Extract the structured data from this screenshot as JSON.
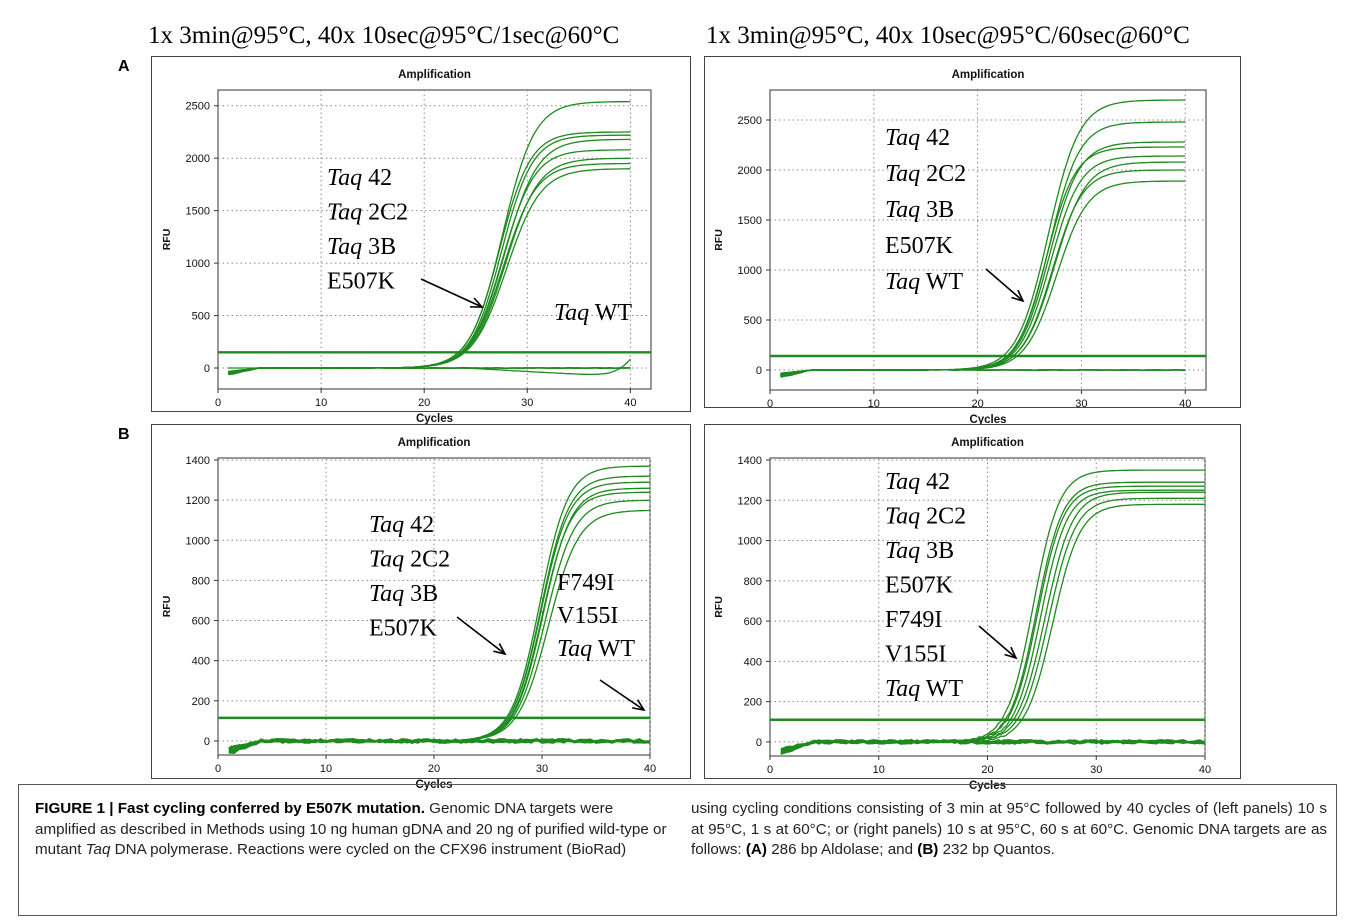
{
  "headers": {
    "left": "1x 3min@95°C, 40x 10sec@95°C/1sec@60°C",
    "right": "1x 3min@95°C, 40x 10sec@95°C/60sec@60°C"
  },
  "panel_labels": [
    "A",
    "B"
  ],
  "chart_data": [
    {
      "type": "line",
      "panel": "A",
      "column": "left",
      "title": "Amplification",
      "xlabel": "Cycles",
      "ylabel": "RFU",
      "xlim": [
        0,
        42
      ],
      "ylim": [
        -200,
        2650
      ],
      "xticks": [
        0,
        10,
        20,
        30,
        40
      ],
      "yticks": [
        0,
        500,
        1000,
        1500,
        2000,
        2500
      ],
      "grid": true,
      "threshold": 150,
      "curves": [
        {
          "plateau": 2540,
          "midpoint": 27.6,
          "slope": 1.55
        },
        {
          "plateau": 2250,
          "midpoint": 27.3,
          "slope": 1.5
        },
        {
          "plateau": 2220,
          "midpoint": 27.5,
          "slope": 1.5
        },
        {
          "plateau": 2180,
          "midpoint": 27.8,
          "slope": 1.6
        },
        {
          "plateau": 2080,
          "midpoint": 27.6,
          "slope": 1.55
        },
        {
          "plateau": 2000,
          "midpoint": 27.9,
          "slope": 1.6
        },
        {
          "plateau": 1950,
          "midpoint": 27.7,
          "slope": 1.6
        },
        {
          "plateau": 1900,
          "midpoint": 28.0,
          "slope": 1.65
        }
      ],
      "wt_curve": {
        "plateau": 800,
        "midpoint": 41.5,
        "slope": 1.1
      },
      "annotations": {
        "group": [
          {
            "italic": "Taq",
            "rest": " 42"
          },
          {
            "italic": "Taq",
            "rest": " 2C2"
          },
          {
            "italic": "Taq",
            "rest": " 3B"
          },
          {
            "italic": "",
            "rest": "E507K"
          }
        ],
        "wt": {
          "italic": "Taq",
          "rest": " WT"
        }
      }
    },
    {
      "type": "line",
      "panel": "A",
      "column": "right",
      "title": "Amplification",
      "xlabel": "Cycles",
      "ylabel": "RFU",
      "xlim": [
        0,
        42
      ],
      "ylim": [
        -200,
        2800
      ],
      "xticks": [
        0,
        10,
        20,
        30,
        40
      ],
      "yticks": [
        0,
        500,
        1000,
        1500,
        2000,
        2500
      ],
      "grid": true,
      "threshold": 140,
      "curves": [
        {
          "plateau": 2700,
          "midpoint": 26.8,
          "slope": 1.5
        },
        {
          "plateau": 2480,
          "midpoint": 26.9,
          "slope": 1.45
        },
        {
          "plateau": 2280,
          "midpoint": 26.9,
          "slope": 1.45
        },
        {
          "plateau": 2230,
          "midpoint": 26.6,
          "slope": 1.4
        },
        {
          "plateau": 2140,
          "midpoint": 27.0,
          "slope": 1.45
        },
        {
          "plateau": 2080,
          "midpoint": 27.4,
          "slope": 1.5
        },
        {
          "plateau": 2000,
          "midpoint": 27.2,
          "slope": 1.45
        },
        {
          "plateau": 1890,
          "midpoint": 27.6,
          "slope": 1.5
        }
      ],
      "annotations": {
        "group": [
          {
            "italic": "Taq",
            "rest": " 42"
          },
          {
            "italic": "Taq",
            "rest": " 2C2"
          },
          {
            "italic": "Taq",
            "rest": " 3B"
          },
          {
            "italic": "",
            "rest": "E507K"
          },
          {
            "italic": "Taq",
            "rest": " WT"
          }
        ]
      }
    },
    {
      "type": "line",
      "panel": "B",
      "column": "left",
      "title": "Amplification",
      "xlabel": "Cycles",
      "ylabel": "RFU",
      "xlim": [
        0,
        40
      ],
      "ylim": [
        -70,
        1410
      ],
      "xticks": [
        0,
        10,
        20,
        30,
        40
      ],
      "yticks": [
        0,
        200,
        400,
        600,
        800,
        1000,
        1200,
        1400
      ],
      "grid": true,
      "threshold": 115,
      "curves": [
        {
          "plateau": 1370,
          "midpoint": 29.8,
          "slope": 1.3
        },
        {
          "plateau": 1320,
          "midpoint": 29.9,
          "slope": 1.3
        },
        {
          "plateau": 1290,
          "midpoint": 29.9,
          "slope": 1.3
        },
        {
          "plateau": 1260,
          "midpoint": 30.1,
          "slope": 1.3
        },
        {
          "plateau": 1240,
          "midpoint": 30.0,
          "slope": 1.3
        },
        {
          "plateau": 1200,
          "midpoint": 30.3,
          "slope": 1.35
        },
        {
          "plateau": 1150,
          "midpoint": 30.6,
          "slope": 1.4
        }
      ],
      "wt_curve": {
        "plateau": 0,
        "midpoint": 60,
        "slope": 1
      },
      "annotations": {
        "group": [
          {
            "italic": "Taq",
            "rest": " 42"
          },
          {
            "italic": "Taq",
            "rest": " 2C2"
          },
          {
            "italic": "Taq",
            "rest": " 3B"
          },
          {
            "italic": "",
            "rest": "E507K"
          }
        ],
        "side": [
          {
            "italic": "",
            "rest": "F749I"
          },
          {
            "italic": "",
            "rest": "V155I"
          },
          {
            "italic": "Taq",
            "rest": " WT"
          }
        ]
      }
    },
    {
      "type": "line",
      "panel": "B",
      "column": "right",
      "title": "Amplification",
      "xlabel": "Cycles",
      "ylabel": "RFU",
      "xlim": [
        0,
        40
      ],
      "ylim": [
        -70,
        1410
      ],
      "xticks": [
        0,
        10,
        20,
        30,
        40
      ],
      "yticks": [
        0,
        200,
        400,
        600,
        800,
        1000,
        1200,
        1400
      ],
      "grid": true,
      "threshold": 110,
      "curves": [
        {
          "plateau": 1350,
          "midpoint": 24.2,
          "slope": 1.2
        },
        {
          "plateau": 1290,
          "midpoint": 24.5,
          "slope": 1.2
        },
        {
          "plateau": 1270,
          "midpoint": 24.6,
          "slope": 1.2
        },
        {
          "plateau": 1250,
          "midpoint": 24.9,
          "slope": 1.2
        },
        {
          "plateau": 1240,
          "midpoint": 25.3,
          "slope": 1.25
        },
        {
          "plateau": 1210,
          "midpoint": 25.6,
          "slope": 1.25
        },
        {
          "plateau": 1180,
          "midpoint": 26.0,
          "slope": 1.25
        }
      ],
      "annotations": {
        "group": [
          {
            "italic": "Taq",
            "rest": " 42"
          },
          {
            "italic": "Taq",
            "rest": " 2C2"
          },
          {
            "italic": "Taq",
            "rest": " 3B"
          },
          {
            "italic": "",
            "rest": "E507K"
          },
          {
            "italic": "",
            "rest": "F749I"
          },
          {
            "italic": "",
            "rest": "V155I"
          },
          {
            "italic": "Taq",
            "rest": " WT"
          }
        ]
      }
    }
  ],
  "caption": {
    "label": "FIGURE 1 | Fast cycling conferred by E507K mutation.",
    "left_text_1": " Genomic DNA targets were amplified as described in Methods using 10 ng human gDNA and 20 ng of purified wild-type or mutant ",
    "left_italic": "Taq",
    "left_text_2": " DNA polymerase. Reactions were cycled on the CFX96 instrument (BioRad)",
    "right_text_1": "using cycling conditions consisting of 3 min at 95°C followed by 40 cycles of (left panels) 10 s at 95°C, 1 s at 60°C; or (right panels) 10 s at 95°C, 60 s at 60°C. Genomic DNA targets are as follows: ",
    "right_label_a": "(A)",
    "right_text_a": " 286 bp Aldolase; and ",
    "right_label_b": "(B)",
    "right_text_b": " 232 bp Quantos."
  }
}
